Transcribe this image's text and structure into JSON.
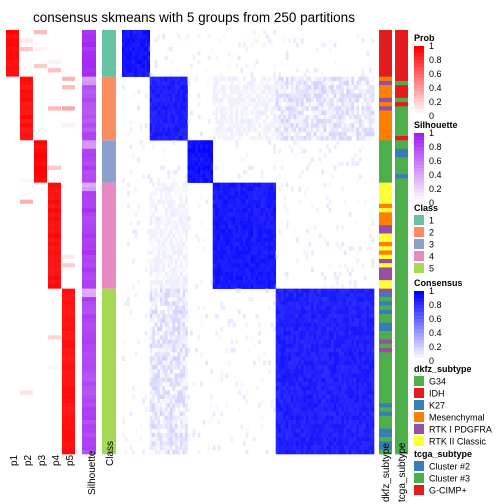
{
  "chart_data": {
    "type": "heatmap",
    "title": "consensus skmeans with 5 groups from 250 partitions",
    "n_samples": 100,
    "groups": [
      {
        "class": 1,
        "n": 11
      },
      {
        "class": 2,
        "n": 15
      },
      {
        "class": 3,
        "n": 10
      },
      {
        "class": 4,
        "n": 25
      },
      {
        "class": 5,
        "n": 39
      }
    ],
    "prob_columns": [
      "p1",
      "p2",
      "p3",
      "p4",
      "p5"
    ],
    "column_labels": {
      "silhouette": "Silhouette",
      "class": "Class",
      "dkfz": "dkfz_subtype",
      "tcga": "tcga_subtype"
    },
    "colors": {
      "prob_high": "#ff0000",
      "prob_low": "#ffffff",
      "silhouette_high": "#a020f0",
      "silhouette_low": "#ffffff",
      "consensus_high": "#0000ff",
      "consensus_low": "#ffffff"
    },
    "legends": {
      "prob": {
        "title": "Prob",
        "ticks": [
          "1",
          "0.8",
          "0.6",
          "0.4",
          "0.2",
          "0"
        ]
      },
      "silhouette": {
        "title": "Silhouette",
        "ticks": [
          "1",
          "0.8",
          "0.6",
          "0.4",
          "0.2",
          "0"
        ]
      },
      "class": {
        "title": "Class",
        "items": [
          {
            "label": "1",
            "color": "#66c2a5"
          },
          {
            "label": "2",
            "color": "#fc8d62"
          },
          {
            "label": "3",
            "color": "#8da0cb"
          },
          {
            "label": "4",
            "color": "#e78ac3"
          },
          {
            "label": "5",
            "color": "#a6d854"
          }
        ]
      },
      "consensus": {
        "title": "Consensus",
        "ticks": [
          "1",
          "0.8",
          "0.6",
          "0.4",
          "0.2",
          "0"
        ]
      },
      "dkfz": {
        "title": "dkfz_subtype",
        "items": [
          {
            "label": "G34",
            "color": "#4daf4a"
          },
          {
            "label": "IDH",
            "color": "#e41a1c"
          },
          {
            "label": "K27",
            "color": "#377eb8"
          },
          {
            "label": "Mesenchymal",
            "color": "#ff7f00"
          },
          {
            "label": "RTK I PDGFRA",
            "color": "#984ea3"
          },
          {
            "label": "RTK II Classic",
            "color": "#ffff33"
          }
        ]
      },
      "tcga": {
        "title": "tcga_subtype",
        "items": [
          {
            "label": "Cluster #2",
            "color": "#377eb8"
          },
          {
            "label": "Cluster #3",
            "color": "#4daf4a"
          },
          {
            "label": "G-CIMP+",
            "color": "#e41a1c"
          }
        ]
      }
    },
    "consensus_within": [
      0.97,
      0.93,
      0.99,
      0.95,
      0.92
    ],
    "prob_mean": [
      0.99,
      0.97,
      1.0,
      0.98,
      0.96
    ],
    "silhouette_mean": [
      0.98,
      0.85,
      0.9,
      0.93,
      0.88
    ]
  }
}
